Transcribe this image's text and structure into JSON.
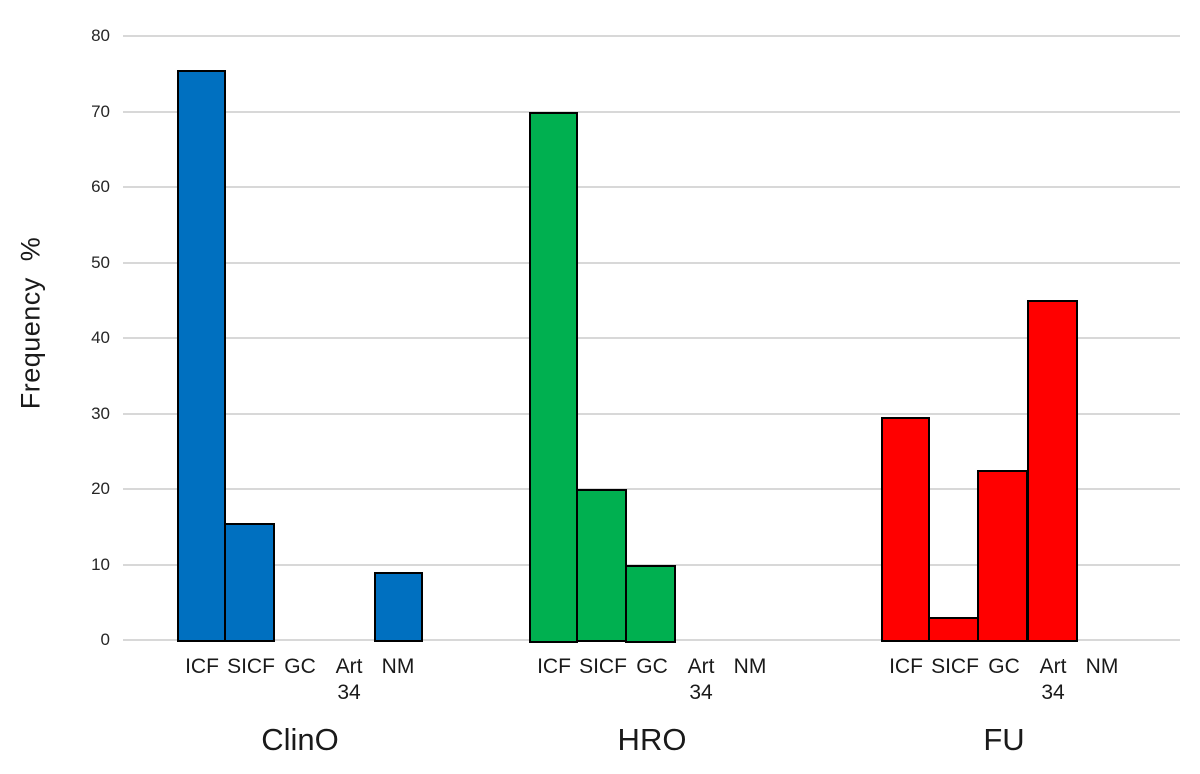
{
  "chart_data": {
    "type": "bar",
    "title": "",
    "ylabel": "Frequency  %",
    "xlabel": "",
    "ylim": [
      0,
      80
    ],
    "yticks": [
      0,
      10,
      20,
      30,
      40,
      50,
      60,
      70,
      80
    ],
    "grid": true,
    "legend": "none",
    "background": "#ffffff",
    "gridline_color": "#d8d8d8",
    "bar_border_color": "#000000",
    "text_color": "#1a1a1a",
    "categories": [
      "ICF",
      "SICF",
      "GC",
      "Art 34",
      "NM"
    ],
    "series": [
      {
        "name": "ClinO",
        "color": "#0070C0",
        "values": [
          75.5,
          15.5,
          0,
          0,
          9
        ]
      },
      {
        "name": "HRO",
        "color": "#00B050",
        "values": [
          70,
          20,
          10,
          0,
          0
        ]
      },
      {
        "name": "FU",
        "color": "#FF0000",
        "values": [
          29.5,
          3,
          22.5,
          45,
          0
        ]
      }
    ]
  }
}
